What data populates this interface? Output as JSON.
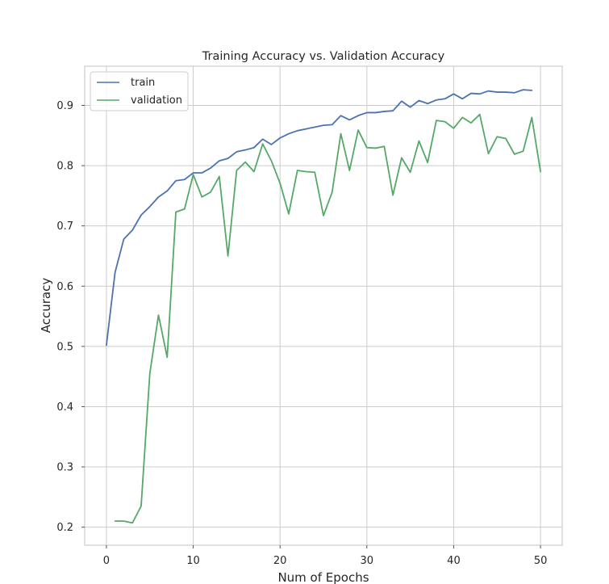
{
  "chart_data": {
    "type": "line",
    "title": "Training Accuracy vs. Validation Accuracy",
    "xlabel": "Num of Epochs",
    "ylabel": "Accuracy",
    "xlim": [
      -2.5,
      52.5
    ],
    "ylim": [
      0.17,
      0.965
    ],
    "xticks": [
      0,
      10,
      20,
      30,
      40,
      50
    ],
    "xtick_labels": [
      "0",
      "10",
      "20",
      "30",
      "40",
      "50"
    ],
    "yticks": [
      0.2,
      0.3,
      0.4,
      0.5,
      0.6,
      0.7,
      0.8,
      0.9
    ],
    "ytick_labels": [
      "0.2",
      "0.3",
      "0.4",
      "0.5",
      "0.6",
      "0.7",
      "0.8",
      "0.9"
    ],
    "grid": true,
    "legend_position": "top-left",
    "series": [
      {
        "name": "train",
        "color": "#4c72b0",
        "x": [
          0,
          1,
          2,
          3,
          4,
          5,
          6,
          7,
          8,
          9,
          10,
          11,
          12,
          13,
          14,
          15,
          16,
          17,
          18,
          19,
          20,
          21,
          22,
          23,
          24,
          25,
          26,
          27,
          28,
          29,
          30,
          31,
          32,
          33,
          34,
          35,
          36,
          37,
          38,
          39,
          40,
          41,
          42,
          43,
          44,
          45,
          46,
          47,
          48,
          49
        ],
        "y": [
          0.502,
          0.623,
          0.678,
          0.693,
          0.718,
          0.732,
          0.748,
          0.758,
          0.775,
          0.777,
          0.788,
          0.788,
          0.796,
          0.808,
          0.812,
          0.823,
          0.826,
          0.83,
          0.844,
          0.835,
          0.846,
          0.853,
          0.858,
          0.861,
          0.864,
          0.867,
          0.868,
          0.883,
          0.876,
          0.883,
          0.888,
          0.888,
          0.89,
          0.891,
          0.907,
          0.897,
          0.908,
          0.903,
          0.909,
          0.911,
          0.919,
          0.911,
          0.92,
          0.919,
          0.924,
          0.922,
          0.922,
          0.921,
          0.926,
          0.925
        ]
      },
      {
        "name": "validation",
        "color": "#55a868",
        "x": [
          1,
          2,
          3,
          4,
          5,
          6,
          7,
          8,
          9,
          10,
          11,
          12,
          13,
          14,
          15,
          16,
          17,
          18,
          19,
          20,
          21,
          22,
          23,
          24,
          25,
          26,
          27,
          28,
          29,
          30,
          31,
          32,
          33,
          34,
          35,
          36,
          37,
          38,
          39,
          40,
          41,
          42,
          43,
          44,
          45,
          46,
          47,
          48,
          49,
          50
        ],
        "y": [
          0.21,
          0.21,
          0.207,
          0.235,
          0.455,
          0.552,
          0.482,
          0.723,
          0.728,
          0.785,
          0.748,
          0.756,
          0.782,
          0.65,
          0.792,
          0.806,
          0.79,
          0.836,
          0.808,
          0.771,
          0.72,
          0.792,
          0.79,
          0.789,
          0.717,
          0.756,
          0.853,
          0.792,
          0.859,
          0.83,
          0.829,
          0.832,
          0.751,
          0.813,
          0.789,
          0.841,
          0.805,
          0.875,
          0.873,
          0.862,
          0.88,
          0.871,
          0.885,
          0.82,
          0.848,
          0.845,
          0.819,
          0.824,
          0.88,
          0.79
        ]
      }
    ]
  }
}
